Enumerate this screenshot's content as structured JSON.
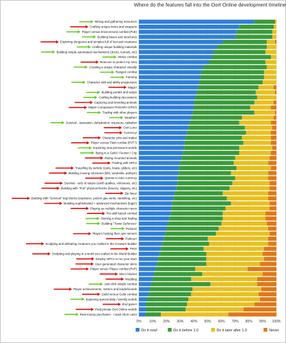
{
  "chart_data": {
    "type": "bar",
    "orientation": "horizontal-stacked-100",
    "title": "Where do the features fall into the Oort Online development timeline?",
    "xlim": [
      0,
      100
    ],
    "x_ticks": [
      "0%",
      "10%",
      "20%",
      "30%",
      "40%",
      "50%",
      "60%",
      "70%",
      "80%",
      "90%",
      "100%"
    ],
    "grid": true,
    "legend_position": "bottom",
    "colors": {
      "Do it now!": "#2f7fd6",
      "Do it before 1.0": "#3a9a3a",
      "Do it later after 1.0": "#e8c020",
      "Never": "#e07818",
      "arrow_red": "#dd1111",
      "arrow_green": "#66cc22"
    },
    "categories": [
      "Mining and gathering resources",
      "Crafting unique items and weapons",
      "Player versus Environment combat (PvE)",
      "Building bases and structures",
      "Exploring dungeons and temples full of loot and creatures",
      "Crafting unique building materials",
      "Building simple automated mechanisms (doors, tunnels, etc)",
      "Melee combat",
      "Beacons to protect my area",
      "Creating a unique character visually",
      "Ranged combat",
      "Farming",
      "Character skill and ability progression",
      "Magic!",
      "Building portals and warps",
      "Crafting building decorations",
      "Capturing and breeding animals",
      "Maps! Compasses! RADAR!! GPS!!!",
      "Trading with other players",
      "Weather!",
      "Survival - starvation, dehydration, exposure, radiation",
      "Oort Lore!",
      "Currency!",
      "Character jobs and trades",
      "Player versus Titan combat (PvT?)",
      "Exploring new permanent worlds",
      "Being in a Guild / Faction / City",
      "Riding mounted animals",
      "Trading with NPCs",
      "Travelling by vehicle (carts, boats, gliders, etc)",
      "Building moving structures (lifts, windmills, pulleys!)",
      "Quests to earn currency",
      "Survival - acts of nature (earth quakes, volcanoes, etc)",
      "Building with \"Fun\" physical blocks (bouncy, slippery, etc)",
      "Zip lines!",
      "Building with \"Survival\" trap blocks (explosive, poison gas vents, vanishing, etc)",
      "Building sophisticated + advanced mechanisms (logic!)",
      "Playing as multiple character races",
      "Pro-skill based combat",
      "Owning a shop and trading",
      "Building \"Tower Defences\"",
      "Potions!",
      "Players hosting their own servers",
      "Parkour!",
      "Sculpting and defeating creatures you crafted in the Creature Builder",
      "Pets!",
      "Sculpting and playing in a world you crafted in the World Builder",
      "Employ NPCs to run your town",
      "User generated character skins",
      "Player versus Player combat (PvP)",
      "Micro blocks!",
      "Modding",
      "Just-click simple combat",
      "Player achievements, metrics and leaderboards",
      "Guild versus Guild combat",
      "Exploring special daily / weekly worlds",
      "End game!",
      "Paid private Oort Online worlds",
      "Real money purchases - I want short cuts!!"
    ],
    "arrows": [
      "green",
      "red",
      "green",
      "green",
      "red",
      "green",
      "green",
      "green",
      "red",
      "green",
      "green",
      "green",
      "green",
      "red",
      "green",
      "green",
      "red",
      "red",
      "green",
      "green",
      "green",
      "red",
      "red",
      "red",
      "red",
      "green",
      "green",
      "red",
      "red",
      "red",
      "red",
      "red",
      "red",
      "red",
      "red",
      "red",
      "red",
      "red",
      "red",
      "green",
      "green",
      "green",
      "red",
      "red",
      "red",
      "red",
      "red",
      "red",
      "red",
      "red",
      "red",
      "red",
      "green",
      "red",
      "red",
      "green",
      "red",
      "red",
      "green"
    ],
    "series": [
      {
        "name": "Do it now!",
        "values": [
          84,
          73,
          71,
          70,
          61,
          57,
          54,
          53,
          51,
          47,
          45,
          45,
          44,
          43,
          42,
          41,
          40,
          40,
          39,
          38,
          37,
          36,
          35,
          34,
          33,
          33,
          32,
          31,
          30,
          29,
          29,
          28,
          28,
          27,
          26,
          25,
          24,
          24,
          23,
          22,
          21,
          20,
          19,
          18,
          17,
          16,
          15,
          14,
          13,
          12,
          11,
          10,
          9,
          8,
          7,
          6,
          5,
          5,
          5
        ]
      },
      {
        "name": "Do it before 1.0",
        "values": [
          15,
          25,
          26,
          27,
          32,
          36,
          38,
          43,
          41,
          46,
          46,
          46,
          46,
          44,
          43,
          45,
          44,
          41,
          45,
          37,
          36,
          41,
          43,
          41,
          43,
          40,
          41,
          39,
          39,
          42,
          38,
          42,
          40,
          39,
          35,
          39,
          43,
          39,
          38,
          39,
          39,
          38,
          37,
          32,
          34,
          31,
          34,
          35,
          36,
          29,
          35,
          28,
          43,
          31,
          31,
          30,
          30,
          29,
          11
        ]
      },
      {
        "name": "Do it later after 1.0",
        "values": [
          1,
          2,
          3,
          3,
          6,
          7,
          8,
          4,
          8,
          7,
          9,
          9,
          10,
          11,
          14,
          14,
          14,
          15,
          15,
          23,
          23,
          20,
          18,
          21,
          20,
          24,
          23,
          25,
          25,
          25,
          27,
          24,
          27,
          29,
          33,
          30,
          28,
          32,
          31,
          31,
          33,
          36,
          39,
          44,
          43,
          44,
          41,
          42,
          39,
          38,
          44,
          48,
          34,
          50,
          49,
          52,
          49,
          42,
          49
        ]
      },
      {
        "name": "Never",
        "values": [
          0,
          0,
          0,
          0,
          1,
          0,
          0,
          0,
          0,
          0,
          0,
          0,
          0,
          2,
          1,
          0,
          2,
          4,
          1,
          2,
          4,
          3,
          4,
          4,
          4,
          3,
          4,
          5,
          6,
          4,
          6,
          6,
          5,
          5,
          6,
          6,
          5,
          5,
          8,
          8,
          7,
          6,
          5,
          6,
          6,
          9,
          10,
          9,
          12,
          21,
          10,
          14,
          14,
          11,
          13,
          12,
          16,
          24,
          35
        ]
      }
    ]
  }
}
